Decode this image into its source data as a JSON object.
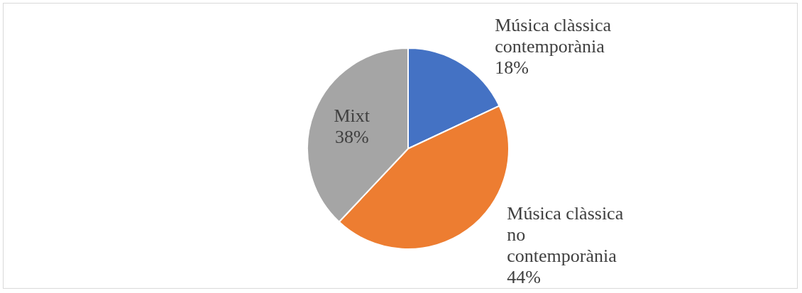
{
  "chart_data": {
    "type": "pie",
    "categories": [
      "Música clàssica contemporània",
      "Música clàssica no contemporània",
      "Mixt"
    ],
    "values": [
      18,
      44,
      38
    ],
    "colors": [
      "#4472c4",
      "#ed7d31",
      "#a5a5a5"
    ],
    "value_labels": [
      "18%",
      "44%",
      "38%"
    ]
  }
}
